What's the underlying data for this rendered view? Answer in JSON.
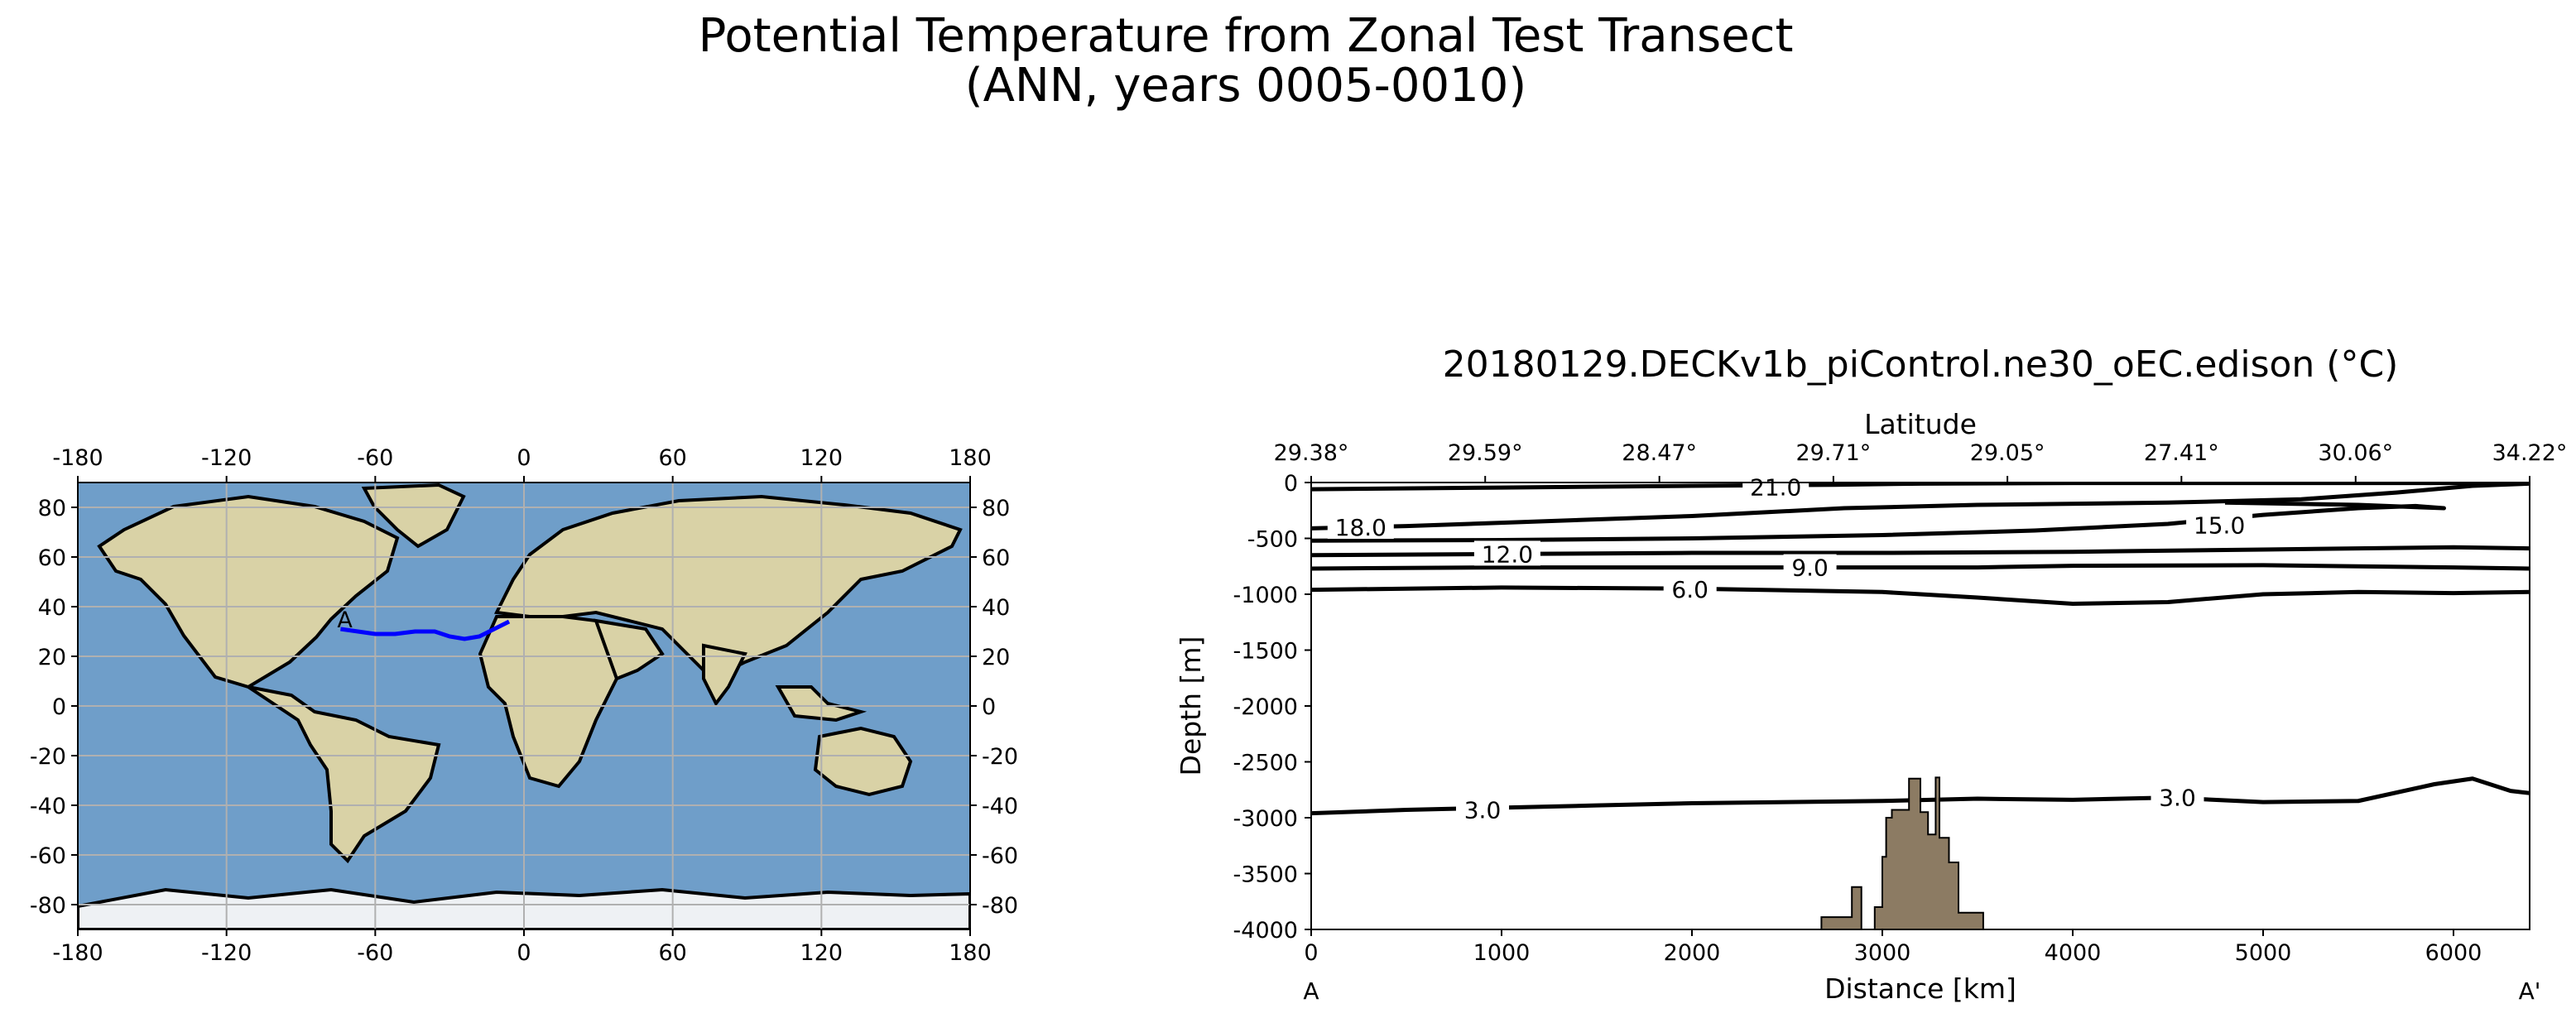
{
  "figure": {
    "suptitle_line1": "Potential Temperature from Zonal Test Transect",
    "suptitle_line2": "(ANN, years 0005-0010)"
  },
  "map": {
    "x_ticks": [
      -180,
      -120,
      -60,
      0,
      60,
      120,
      180
    ],
    "y_ticks": [
      80,
      60,
      40,
      20,
      0,
      -20,
      -40,
      -60,
      -80
    ],
    "transect_start_label": "A",
    "transect": [
      [
        -74,
        31
      ],
      [
        -67,
        30
      ],
      [
        -60,
        29
      ],
      [
        -52,
        29
      ],
      [
        -44,
        30
      ],
      [
        -36,
        30
      ],
      [
        -30,
        28
      ],
      [
        -24,
        27
      ],
      [
        -18,
        28
      ],
      [
        -12,
        31
      ],
      [
        -6,
        34
      ]
    ],
    "transect_color": "#0000ff",
    "ocean_color": "#6f9ec9",
    "land_color": "#d9d2a6"
  },
  "chart_data": {
    "type": "contour",
    "title": "20180129.DECKv1b_piControl.ne30_oEC.edison (°C)",
    "xlabel": "Distance [km]",
    "ylabel": "Depth [m]",
    "top_axis_label": "Latitude",
    "xlim": [
      0,
      6400
    ],
    "ylim": [
      -4000,
      0
    ],
    "x_ticks": [
      0,
      1000,
      2000,
      3000,
      4000,
      5000,
      6000
    ],
    "y_ticks": [
      0,
      -500,
      -1000,
      -1500,
      -2000,
      -2500,
      -3000,
      -3500,
      -4000
    ],
    "latitude_ticks": [
      {
        "distance": 0,
        "label": "29.38°"
      },
      {
        "distance": 914,
        "label": "29.59°"
      },
      {
        "distance": 1829,
        "label": "28.47°"
      },
      {
        "distance": 2743,
        "label": "29.71°"
      },
      {
        "distance": 3657,
        "label": "29.05°"
      },
      {
        "distance": 4571,
        "label": "27.41°"
      },
      {
        "distance": 5486,
        "label": "30.06°"
      },
      {
        "distance": 6400,
        "label": "34.22°"
      }
    ],
    "start_label": "A",
    "end_label": "A'",
    "contours": [
      {
        "level": "21.0",
        "points": [
          [
            0,
            -60
          ],
          [
            1000,
            -45
          ],
          [
            2000,
            -30
          ],
          [
            2750,
            -20
          ],
          [
            3200,
            -10
          ],
          [
            4000,
            -5
          ],
          [
            5000,
            -5
          ],
          [
            6000,
            -5
          ],
          [
            6400,
            -5
          ]
        ],
        "label_at": [
          2440,
          -40
        ]
      },
      {
        "level": "18.0",
        "points": [
          [
            0,
            -410
          ],
          [
            500,
            -390
          ],
          [
            1000,
            -360
          ],
          [
            2000,
            -300
          ],
          [
            2800,
            -230
          ],
          [
            3500,
            -200
          ],
          [
            4500,
            -180
          ],
          [
            5200,
            -150
          ],
          [
            5700,
            -90
          ],
          [
            6100,
            -30
          ],
          [
            6400,
            -10
          ]
        ],
        "label_at": [
          260,
          -400
        ]
      },
      {
        "level": "15.0",
        "points": [
          [
            0,
            -520
          ],
          [
            1000,
            -515
          ],
          [
            2000,
            -500
          ],
          [
            3000,
            -470
          ],
          [
            3800,
            -430
          ],
          [
            4500,
            -370
          ],
          [
            5000,
            -290
          ],
          [
            5500,
            -230
          ],
          [
            5800,
            -210
          ],
          [
            5950,
            -230
          ],
          [
            5500,
            -200
          ],
          [
            4800,
            -180
          ]
        ],
        "label_at": [
          4770,
          -380
        ]
      },
      {
        "level": "12.0",
        "points": [
          [
            0,
            -650
          ],
          [
            1000,
            -640
          ],
          [
            2000,
            -630
          ],
          [
            3000,
            -630
          ],
          [
            4000,
            -620
          ],
          [
            5000,
            -600
          ],
          [
            6000,
            -580
          ],
          [
            6400,
            -590
          ]
        ],
        "label_at": [
          1030,
          -640
        ]
      },
      {
        "level": "9.0",
        "points": [
          [
            0,
            -770
          ],
          [
            1000,
            -760
          ],
          [
            2000,
            -760
          ],
          [
            3000,
            -760
          ],
          [
            3500,
            -760
          ],
          [
            4000,
            -745
          ],
          [
            5000,
            -740
          ],
          [
            6000,
            -760
          ],
          [
            6400,
            -770
          ]
        ],
        "label_at": [
          2620,
          -760
        ]
      },
      {
        "level": "6.0",
        "points": [
          [
            0,
            -960
          ],
          [
            1000,
            -940
          ],
          [
            2000,
            -950
          ],
          [
            3000,
            -980
          ],
          [
            3500,
            -1030
          ],
          [
            4000,
            -1085
          ],
          [
            4500,
            -1070
          ],
          [
            5000,
            -1000
          ],
          [
            5500,
            -980
          ],
          [
            6000,
            -990
          ],
          [
            6400,
            -980
          ]
        ],
        "label_at": [
          1990,
          -955
        ]
      },
      {
        "level": "3.0",
        "points": [
          [
            0,
            -2960
          ],
          [
            500,
            -2930
          ],
          [
            1000,
            -2910
          ],
          [
            1500,
            -2890
          ],
          [
            2000,
            -2870
          ],
          [
            2500,
            -2860
          ],
          [
            3000,
            -2850
          ],
          [
            3500,
            -2830
          ],
          [
            4000,
            -2840
          ],
          [
            4500,
            -2820
          ],
          [
            5000,
            -2860
          ],
          [
            5500,
            -2850
          ],
          [
            5900,
            -2700
          ],
          [
            6100,
            -2650
          ],
          [
            6300,
            -2760
          ],
          [
            6400,
            -2780
          ]
        ],
        "label_at": [
          900,
          -2930
        ],
        "second_label_at": [
          4550,
          -2820
        ]
      }
    ],
    "bathymetry": {
      "fill_color": "#8c7b63",
      "points": [
        [
          2680,
          -4000
        ],
        [
          2680,
          -3890
        ],
        [
          2840,
          -3890
        ],
        [
          2840,
          -3620
        ],
        [
          2890,
          -3620
        ],
        [
          2890,
          -4000
        ],
        [
          2960,
          -4000
        ],
        [
          2960,
          -3800
        ],
        [
          3000,
          -3800
        ],
        [
          3000,
          -3350
        ],
        [
          3020,
          -3350
        ],
        [
          3020,
          -3000
        ],
        [
          3050,
          -3000
        ],
        [
          3050,
          -2930
        ],
        [
          3140,
          -2930
        ],
        [
          3140,
          -2650
        ],
        [
          3200,
          -2650
        ],
        [
          3200,
          -2950
        ],
        [
          3240,
          -2950
        ],
        [
          3240,
          -3150
        ],
        [
          3280,
          -3150
        ],
        [
          3280,
          -2640
        ],
        [
          3300,
          -2640
        ],
        [
          3300,
          -3180
        ],
        [
          3350,
          -3180
        ],
        [
          3350,
          -3400
        ],
        [
          3400,
          -3400
        ],
        [
          3400,
          -3850
        ],
        [
          3530,
          -3850
        ],
        [
          3530,
          -4000
        ]
      ]
    }
  }
}
